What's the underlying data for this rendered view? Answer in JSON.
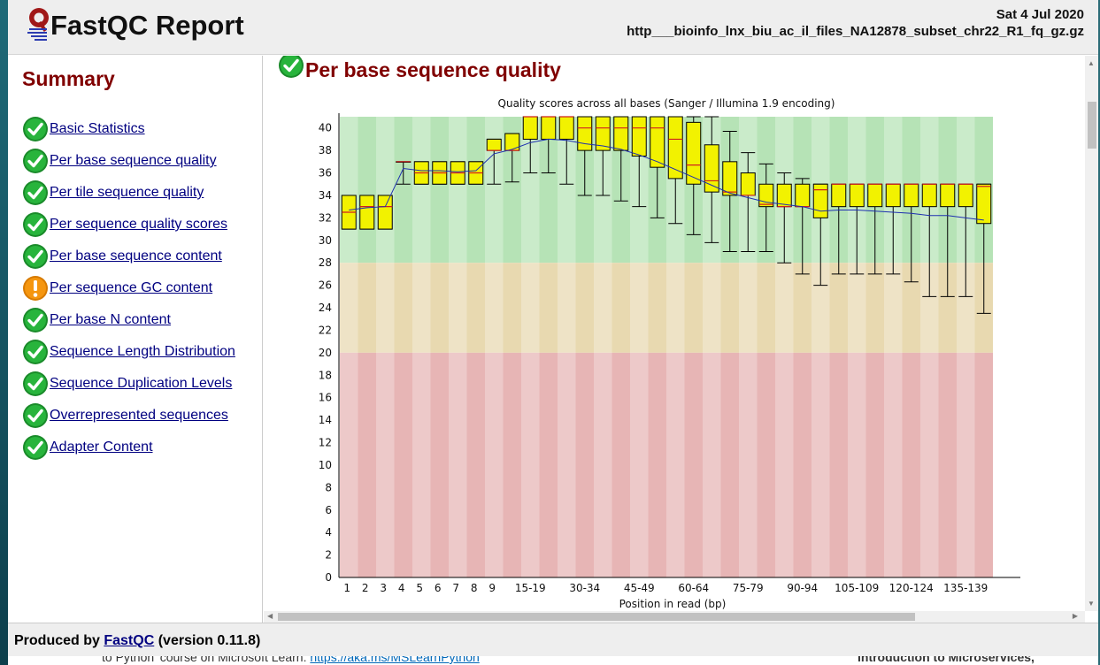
{
  "header": {
    "title": "FastQC Report",
    "date": "Sat 4 Jul 2020",
    "filename": "http___bioinfo_lnx_biu_ac_il_files_NA12878_subset_chr22_R1_fq_gz.gz"
  },
  "sidebar": {
    "title": "Summary",
    "modules": [
      {
        "label": "Basic Statistics",
        "status": "pass"
      },
      {
        "label": "Per base sequence quality",
        "status": "pass"
      },
      {
        "label": "Per tile sequence quality",
        "status": "pass"
      },
      {
        "label": "Per sequence quality scores",
        "status": "pass"
      },
      {
        "label": "Per base sequence content",
        "status": "pass"
      },
      {
        "label": "Per sequence GC content",
        "status": "warn"
      },
      {
        "label": "Per base N content",
        "status": "pass"
      },
      {
        "label": "Sequence Length Distribution",
        "status": "pass"
      },
      {
        "label": "Sequence Duplication Levels",
        "status": "pass"
      },
      {
        "label": "Overrepresented sequences",
        "status": "pass"
      },
      {
        "label": "Adapter Content",
        "status": "pass"
      }
    ]
  },
  "section": {
    "title": "Per base sequence quality",
    "status": "pass"
  },
  "chart_data": {
    "type": "boxplot",
    "title": "Quality scores across all bases (Sanger / Illumina 1.9 encoding)",
    "xlabel": "Position in read (bp)",
    "ylabel": "",
    "ylim": [
      0,
      41
    ],
    "yticks": [
      0,
      2,
      4,
      6,
      8,
      10,
      12,
      14,
      16,
      18,
      20,
      22,
      24,
      26,
      28,
      30,
      32,
      34,
      36,
      38,
      40
    ],
    "x_tick_labels": [
      "1",
      "2",
      "3",
      "4",
      "5",
      "6",
      "7",
      "8",
      "9",
      "15-19",
      "30-34",
      "45-49",
      "60-64",
      "75-79",
      "90-94",
      "105-109",
      "120-124",
      "135-139"
    ],
    "quality_bands": [
      {
        "from": 28,
        "to": 41,
        "color": "#b6e3b6"
      },
      {
        "from": 20,
        "to": 28,
        "color": "#e8d9b0"
      },
      {
        "from": 0,
        "to": 20,
        "color": "#e7b5b5"
      }
    ],
    "mean_color": "#1e2fb0",
    "median_color": "#d02020",
    "box_color": "#f2f200",
    "boxes": [
      {
        "q1": 31,
        "q3": 34,
        "median": 32.5,
        "low": 31,
        "high": 34,
        "mean": 32.7
      },
      {
        "q1": 31,
        "q3": 34,
        "median": 33,
        "low": 31,
        "high": 34,
        "mean": 32.9
      },
      {
        "q1": 31,
        "q3": 34,
        "median": 33,
        "low": 31,
        "high": 34,
        "mean": 33.0
      },
      {
        "q1": 37,
        "q3": 37,
        "median": 37,
        "low": 35,
        "high": 37,
        "mean": 36.4
      },
      {
        "q1": 35,
        "q3": 37,
        "median": 36,
        "low": 35,
        "high": 37,
        "mean": 36.2
      },
      {
        "q1": 35,
        "q3": 37,
        "median": 36,
        "low": 35,
        "high": 37,
        "mean": 36.2
      },
      {
        "q1": 35,
        "q3": 37,
        "median": 36,
        "low": 35,
        "high": 37,
        "mean": 36.1
      },
      {
        "q1": 35,
        "q3": 37,
        "median": 36,
        "low": 35,
        "high": 37,
        "mean": 36.2
      },
      {
        "q1": 38,
        "q3": 39,
        "median": 38,
        "low": 35,
        "high": 39,
        "mean": 37.7
      },
      {
        "q1": 38,
        "q3": 39.5,
        "median": 38,
        "low": 35.2,
        "high": 39.5,
        "mean": 38.1
      },
      {
        "q1": 39,
        "q3": 41,
        "median": 41,
        "low": 36,
        "high": 41,
        "mean": 38.7
      },
      {
        "q1": 39,
        "q3": 41,
        "median": 41,
        "low": 36,
        "high": 41,
        "mean": 39.0
      },
      {
        "q1": 39,
        "q3": 41,
        "median": 41,
        "low": 35,
        "high": 41,
        "mean": 38.9
      },
      {
        "q1": 38,
        "q3": 41,
        "median": 40,
        "low": 34,
        "high": 41,
        "mean": 38.6
      },
      {
        "q1": 38,
        "q3": 41,
        "median": 40,
        "low": 34,
        "high": 41,
        "mean": 38.4
      },
      {
        "q1": 38,
        "q3": 41,
        "median": 40,
        "low": 33.5,
        "high": 41,
        "mean": 38.1
      },
      {
        "q1": 37.5,
        "q3": 41,
        "median": 40,
        "low": 33,
        "high": 41,
        "mean": 37.6
      },
      {
        "q1": 36.5,
        "q3": 41,
        "median": 40,
        "low": 32,
        "high": 41,
        "mean": 37.0
      },
      {
        "q1": 35.5,
        "q3": 41,
        "median": 39,
        "low": 31.5,
        "high": 41,
        "mean": 36.3
      },
      {
        "q1": 35,
        "q3": 40.5,
        "median": 36.7,
        "low": 30.5,
        "high": 41,
        "mean": 35.6
      },
      {
        "q1": 34.3,
        "q3": 38.5,
        "median": 35.3,
        "low": 29.8,
        "high": 41,
        "mean": 34.9
      },
      {
        "q1": 34,
        "q3": 37,
        "median": 34.3,
        "low": 29,
        "high": 39.7,
        "mean": 34.2
      },
      {
        "q1": 34,
        "q3": 36,
        "median": 34,
        "low": 29,
        "high": 37.8,
        "mean": 33.8
      },
      {
        "q1": 33,
        "q3": 35,
        "median": 33.2,
        "low": 29,
        "high": 36.8,
        "mean": 33.4
      },
      {
        "q1": 33,
        "q3": 35,
        "median": 33,
        "low": 28,
        "high": 36,
        "mean": 33.2
      },
      {
        "q1": 33,
        "q3": 35,
        "median": 33,
        "low": 27,
        "high": 35.5,
        "mean": 33.0
      },
      {
        "q1": 32,
        "q3": 35,
        "median": 34.5,
        "low": 26,
        "high": 35,
        "mean": 32.6
      },
      {
        "q1": 33,
        "q3": 35,
        "median": 35,
        "low": 27,
        "high": 35,
        "mean": 32.7
      },
      {
        "q1": 33,
        "q3": 35,
        "median": 35,
        "low": 27,
        "high": 35,
        "mean": 32.7
      },
      {
        "q1": 33,
        "q3": 35,
        "median": 35,
        "low": 27,
        "high": 35,
        "mean": 32.6
      },
      {
        "q1": 33,
        "q3": 35,
        "median": 35,
        "low": 27,
        "high": 35,
        "mean": 32.5
      },
      {
        "q1": 33,
        "q3": 35,
        "median": 35,
        "low": 26.3,
        "high": 35,
        "mean": 32.4
      },
      {
        "q1": 33,
        "q3": 35,
        "median": 35,
        "low": 25,
        "high": 35,
        "mean": 32.2
      },
      {
        "q1": 33,
        "q3": 35,
        "median": 35,
        "low": 25,
        "high": 35,
        "mean": 32.2
      },
      {
        "q1": 33,
        "q3": 35,
        "median": 35,
        "low": 25,
        "high": 35,
        "mean": 32.0
      },
      {
        "q1": 31.5,
        "q3": 35,
        "median": 34.8,
        "low": 23.5,
        "high": 35,
        "mean": 31.8
      }
    ]
  },
  "footer": {
    "prefix": "Produced by ",
    "link": "FastQC",
    "suffix": " (version 0.11.8)"
  },
  "background_page": {
    "left_text": "to Python' course on Microsoft Learn: ",
    "left_link": "https://aka.ms/MSLearnPython",
    "right_text": "Introduction to Microservices,"
  }
}
